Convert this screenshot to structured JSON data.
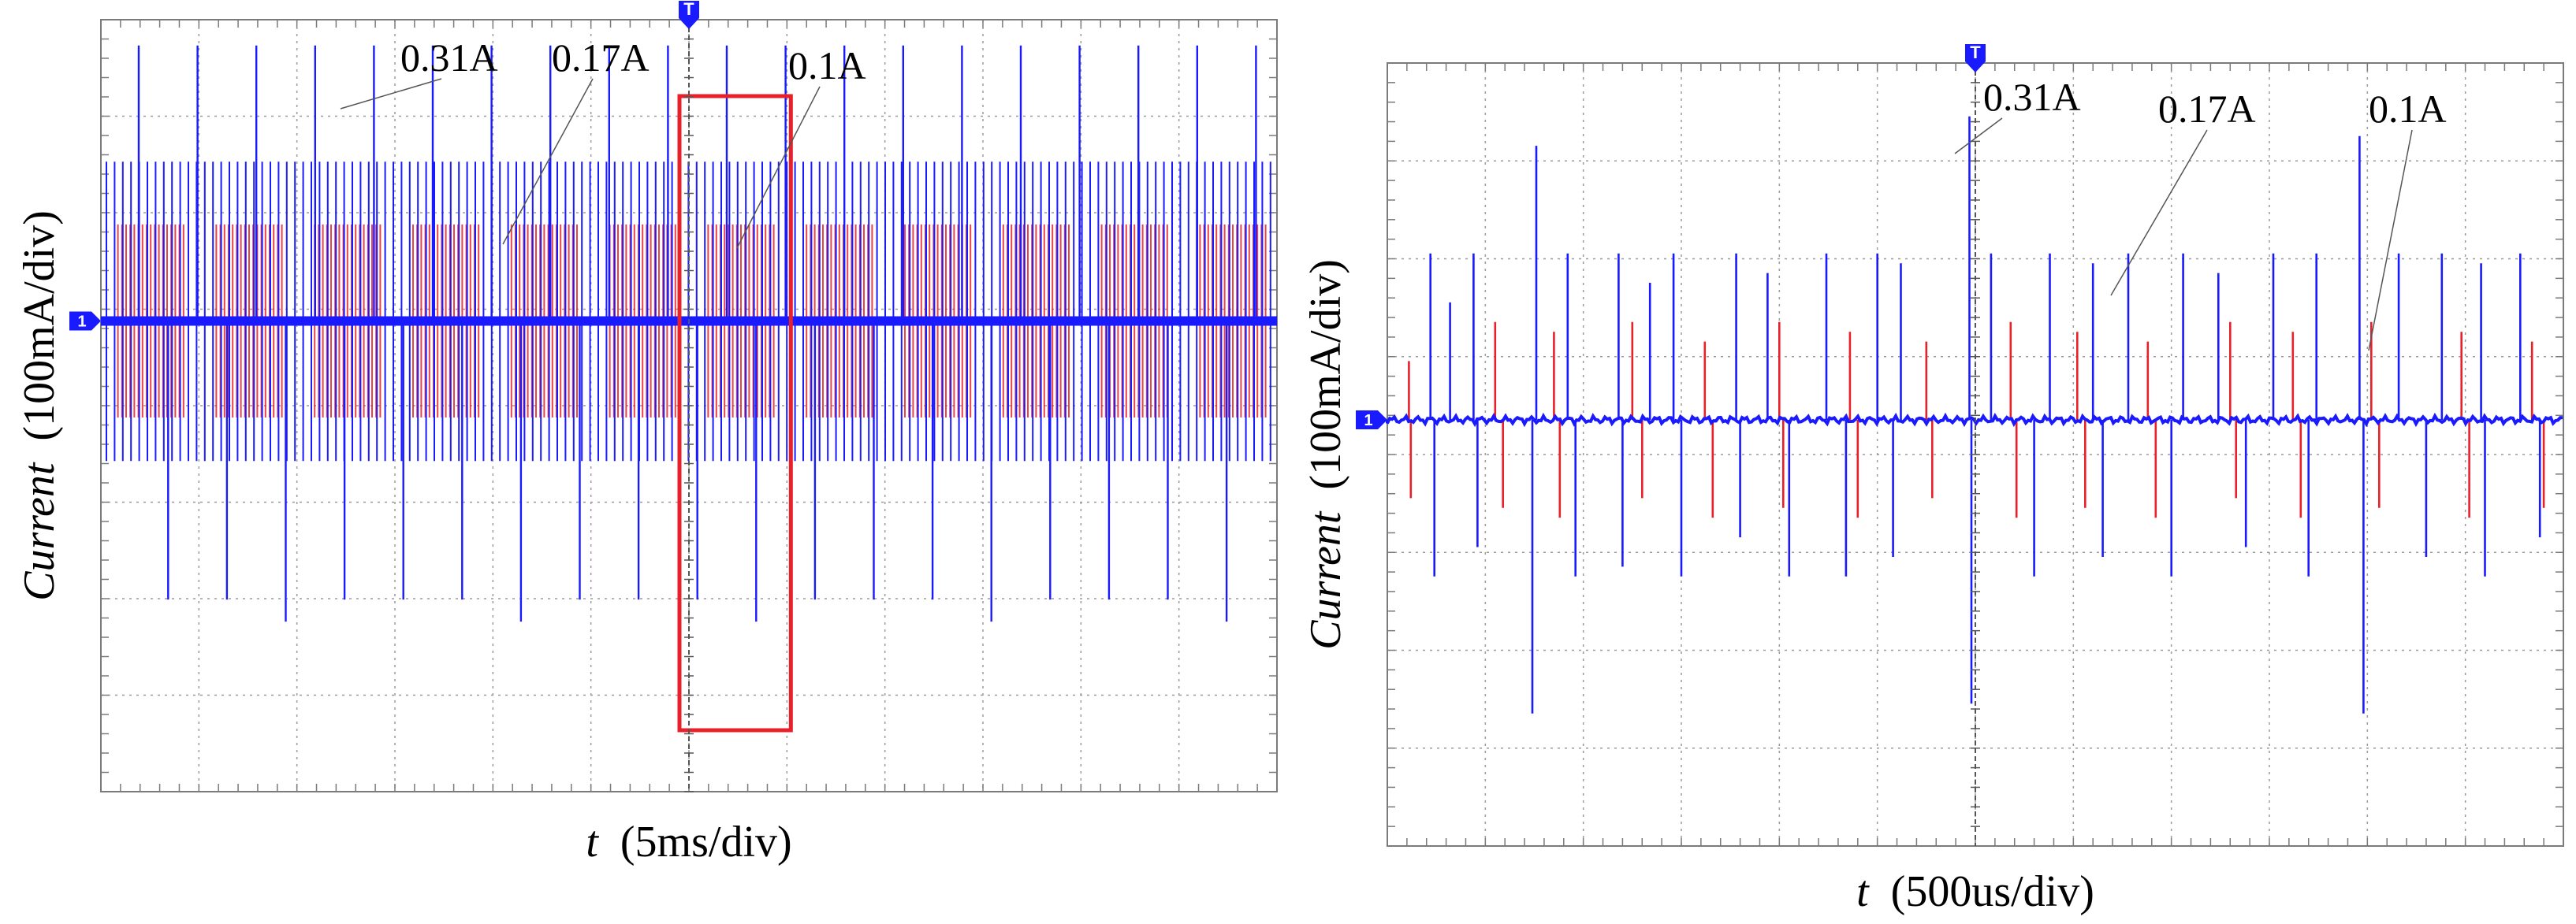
{
  "chart_data": [
    {
      "type": "line",
      "panel": "left",
      "xlabel_var": "t",
      "xlabel_unit": "(5ms/div)",
      "ylabel_var": "Current",
      "ylabel_unit": "(100mA/div)",
      "x_divisions": 12,
      "y_divisions": 8,
      "x_ms_per_div": 5,
      "y_mA_per_div": 100,
      "xlim_ms": [
        -30,
        30
      ],
      "ylim_mA": [
        -300,
        500
      ],
      "grid": true,
      "channel_marker": "1",
      "trigger_marker": "T",
      "trigger_time_ms": 0,
      "highlight_box_ms": [
        0,
        5.2
      ],
      "highlight_box_color": "#e8202a",
      "series": [
        {
          "color": "#1a1aff",
          "dense_level_A": 0.17,
          "spike_level_A": 0.31,
          "negative_level_A": -0.15,
          "spike_period_ms": 1.5
        },
        {
          "color": "#e8202a",
          "dense_level_A": 0.1,
          "negative_level_A": -0.1
        }
      ],
      "annotations": [
        {
          "text": "0.31A",
          "value_A": 0.31
        },
        {
          "text": "0.17A",
          "value_A": 0.17
        },
        {
          "text": "0.1A",
          "value_A": 0.1
        }
      ]
    },
    {
      "type": "line",
      "panel": "right",
      "xlabel_var": "t",
      "xlabel_unit": "(500us/div)",
      "ylabel_var": "Current",
      "ylabel_unit": "(100mA/div)",
      "x_divisions": 12,
      "y_divisions": 8,
      "x_us_per_div": 500,
      "y_mA_per_div": 100,
      "xlim_us": [
        -3000,
        3000
      ],
      "ylim_mA": [
        -400,
        400
      ],
      "grid": true,
      "channel_marker": "1",
      "trigger_marker": "T",
      "trigger_time_us": 0,
      "series": [
        {
          "color": "#1a1aff",
          "pulses_up": [
            {
              "t_us": -2780,
              "A": 0.17
            },
            {
              "t_us": -2680,
              "A": 0.12
            },
            {
              "t_us": -2560,
              "A": 0.17
            },
            {
              "t_us": -2240,
              "A": 0.28
            },
            {
              "t_us": -2080,
              "A": 0.17
            },
            {
              "t_us": -1820,
              "A": 0.17
            },
            {
              "t_us": -1660,
              "A": 0.14
            },
            {
              "t_us": -1540,
              "A": 0.17
            },
            {
              "t_us": -1220,
              "A": 0.17
            },
            {
              "t_us": -1060,
              "A": 0.15
            },
            {
              "t_us": -760,
              "A": 0.17
            },
            {
              "t_us": -500,
              "A": 0.17
            },
            {
              "t_us": -380,
              "A": 0.16
            },
            {
              "t_us": -30,
              "A": 0.31
            },
            {
              "t_us": 80,
              "A": 0.17
            },
            {
              "t_us": 380,
              "A": 0.17
            },
            {
              "t_us": 600,
              "A": 0.16
            },
            {
              "t_us": 780,
              "A": 0.17
            },
            {
              "t_us": 1060,
              "A": 0.17
            },
            {
              "t_us": 1240,
              "A": 0.15
            },
            {
              "t_us": 1520,
              "A": 0.17
            },
            {
              "t_us": 1740,
              "A": 0.17
            },
            {
              "t_us": 1960,
              "A": 0.29
            },
            {
              "t_us": 2160,
              "A": 0.17
            },
            {
              "t_us": 2380,
              "A": 0.17
            },
            {
              "t_us": 2580,
              "A": 0.16
            },
            {
              "t_us": 2780,
              "A": 0.17
            }
          ],
          "pulses_down": [
            {
              "t_us": -2760,
              "A": -0.16
            },
            {
              "t_us": -2540,
              "A": -0.13
            },
            {
              "t_us": -2260,
              "A": -0.3
            },
            {
              "t_us": -2040,
              "A": -0.16
            },
            {
              "t_us": -1800,
              "A": -0.15
            },
            {
              "t_us": -1500,
              "A": -0.16
            },
            {
              "t_us": -1200,
              "A": -0.12
            },
            {
              "t_us": -950,
              "A": -0.16
            },
            {
              "t_us": -660,
              "A": -0.16
            },
            {
              "t_us": -420,
              "A": -0.14
            },
            {
              "t_us": -20,
              "A": -0.29
            },
            {
              "t_us": 300,
              "A": -0.16
            },
            {
              "t_us": 650,
              "A": -0.14
            },
            {
              "t_us": 1000,
              "A": -0.16
            },
            {
              "t_us": 1380,
              "A": -0.13
            },
            {
              "t_us": 1700,
              "A": -0.16
            },
            {
              "t_us": 1980,
              "A": -0.3
            },
            {
              "t_us": 2300,
              "A": -0.14
            },
            {
              "t_us": 2600,
              "A": -0.16
            },
            {
              "t_us": 2880,
              "A": -0.12
            }
          ]
        },
        {
          "color": "#e8202a",
          "pulses_up": [
            {
              "t_us": -2890,
              "A": 0.06
            },
            {
              "t_us": -2450,
              "A": 0.1
            },
            {
              "t_us": -2150,
              "A": 0.09
            },
            {
              "t_us": -1750,
              "A": 0.1
            },
            {
              "t_us": -1380,
              "A": 0.08
            },
            {
              "t_us": -1000,
              "A": 0.1
            },
            {
              "t_us": -640,
              "A": 0.09
            },
            {
              "t_us": -250,
              "A": 0.08
            },
            {
              "t_us": 180,
              "A": 0.1
            },
            {
              "t_us": 520,
              "A": 0.09
            },
            {
              "t_us": 880,
              "A": 0.08
            },
            {
              "t_us": 1300,
              "A": 0.1
            },
            {
              "t_us": 1620,
              "A": 0.09
            },
            {
              "t_us": 2020,
              "A": 0.1
            },
            {
              "t_us": 2480,
              "A": 0.09
            },
            {
              "t_us": 2840,
              "A": 0.08
            }
          ],
          "pulses_down": [
            {
              "t_us": -2880,
              "A": -0.08
            },
            {
              "t_us": -2410,
              "A": -0.09
            },
            {
              "t_us": -2120,
              "A": -0.1
            },
            {
              "t_us": -1700,
              "A": -0.08
            },
            {
              "t_us": -1340,
              "A": -0.1
            },
            {
              "t_us": -980,
              "A": -0.09
            },
            {
              "t_us": -600,
              "A": -0.1
            },
            {
              "t_us": -220,
              "A": -0.08
            },
            {
              "t_us": 210,
              "A": -0.1
            },
            {
              "t_us": 560,
              "A": -0.09
            },
            {
              "t_us": 920,
              "A": -0.1
            },
            {
              "t_us": 1330,
              "A": -0.08
            },
            {
              "t_us": 1660,
              "A": -0.1
            },
            {
              "t_us": 2060,
              "A": -0.09
            },
            {
              "t_us": 2520,
              "A": -0.1
            },
            {
              "t_us": 2900,
              "A": -0.09
            }
          ]
        }
      ],
      "annotations": [
        {
          "text": "0.31A",
          "value_A": 0.31
        },
        {
          "text": "0.17A",
          "value_A": 0.17
        },
        {
          "text": "0.1A",
          "value_A": 0.1
        }
      ]
    }
  ]
}
